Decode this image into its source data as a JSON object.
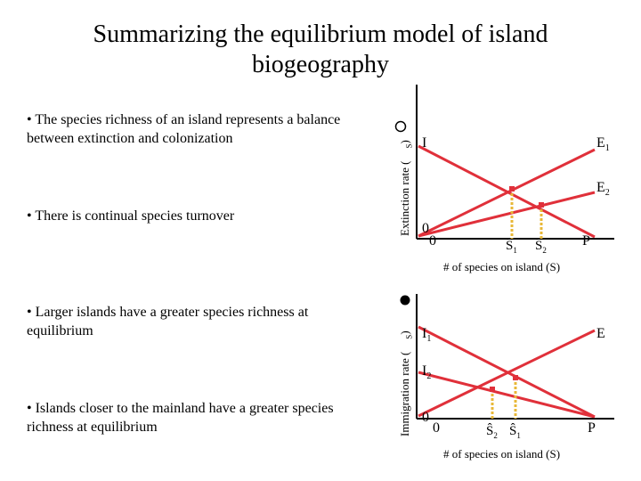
{
  "title": "Summarizing the equilibrium model of island biogeography",
  "bullets": [
    "• The species richness of an island represents a balance between extinction and colonization",
    "• There is continual species turnover",
    "• Larger islands have a greater species richness at equilibrium",
    "• Islands closer to the mainland have a greater species richness at equilibrium"
  ],
  "graph1": {
    "ylabel_prefix": "Extinction rate (",
    "ylabel_suffix": ")",
    "xlabel": "# of species on island (S)",
    "label_I": "I",
    "label_E1": "E",
    "label_E1_sub": "1",
    "label_E2": "E",
    "label_E2_sub": "2",
    "label_P": "P",
    "y_zero": "0",
    "x_zero": "0",
    "s_hat_1": "Ŝ",
    "s_hat_1_sub": "1",
    "s_hat_2": "Ŝ",
    "s_hat_2_sub": "2",
    "symbol_sub": "S"
  },
  "graph2": {
    "ylabel_prefix": "Immigration rate (",
    "ylabel_suffix": ")",
    "xlabel": "# of species on island (S)",
    "label_I1": "I",
    "label_I1_sub": "1",
    "label_I2": "I",
    "label_I2_sub": "2",
    "label_E": "E",
    "label_P": "P",
    "y_zero": "0",
    "x_zero": "0",
    "s_hat_2": "Ŝ",
    "s_hat_2_sub": "2",
    "s_hat_1": "Ŝ",
    "s_hat_1_sub": "1",
    "symbol_sub": "S"
  },
  "colors": {
    "line": "#e0303a",
    "dotted": "#e8b838",
    "axis": "#000000"
  }
}
